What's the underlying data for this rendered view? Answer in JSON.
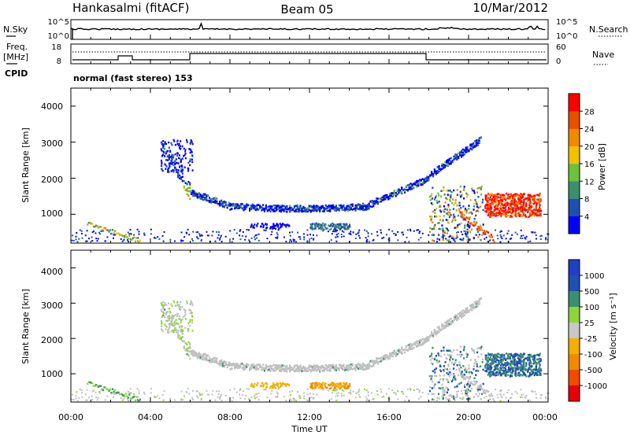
{
  "header": {
    "station": "Hankasalmi (fitACF)",
    "beam": "Beam 05",
    "date": "10/Mar/2012"
  },
  "strip_panels": {
    "nsky_label": "N.Sky",
    "nsky_ticks": [
      "10^5",
      "10^0"
    ],
    "nsearch_label": "N.Search",
    "nsearch_ticks": [
      "10^5",
      "10^0"
    ],
    "freq_label_line1": "Freq.",
    "freq_label_line2": "[MHz]",
    "freq_ticks": [
      "18",
      "8"
    ],
    "nave_label": "Nave",
    "nave_ticks": [
      "60",
      "0"
    ],
    "cpid_label": "CPID",
    "cpid_text": "normal (fast stereo) 153"
  },
  "colors": {
    "power_scale": [
      "#0000ff",
      "#1f4faf",
      "#3c8f6e",
      "#6dc13d",
      "#f2c200",
      "#f08a00",
      "#e85000",
      "#ff0000"
    ],
    "velocity_scale": [
      "#e80000",
      "#f24a00",
      "#f08a00",
      "#f2b000",
      "#c8c8c8",
      "#8fd43a",
      "#3c8f6e",
      "#1f4faf",
      "#2040c0"
    ],
    "ground_scatter": "#c0c0c0"
  },
  "chart_data": [
    {
      "type": "heatmap",
      "name": "power",
      "ylabel": "Slant Range [km]",
      "yticks": [
        "1000",
        "2000",
        "3000",
        "4000"
      ],
      "ylim": [
        200,
        4500
      ],
      "xlim": [
        0,
        24
      ],
      "colorbar": {
        "label": "Power [dB]",
        "ticks": [
          "4",
          "8",
          "12",
          "16",
          "20",
          "24",
          "28"
        ]
      },
      "features": [
        {
          "desc_hours": [
            4.5,
            20.5
          ],
          "range_km": [
            1100,
            3100
          ],
          "level": "low"
        },
        {
          "desc_hours": [
            4.8,
            6.0
          ],
          "range_km": [
            1300,
            1700
          ],
          "level": "high"
        },
        {
          "desc_hours": [
            20.8,
            23.5
          ],
          "range_km": [
            1000,
            1600
          ],
          "level": "max"
        }
      ]
    },
    {
      "type": "heatmap",
      "name": "velocity",
      "ylabel": "Slant Range [km]",
      "yticks": [
        "1000",
        "2000",
        "3000",
        "4000"
      ],
      "ylim": [
        200,
        4500
      ],
      "xlim": [
        0,
        24
      ],
      "colorbar": {
        "label": "Velocity [m s⁻¹]",
        "ticks": [
          "1000",
          "500",
          "100",
          "25",
          "-25",
          "-100",
          "-500",
          "-1000"
        ]
      }
    }
  ],
  "x_axis": {
    "ticks": [
      "00:00",
      "04:00",
      "08:00",
      "12:00",
      "16:00",
      "20:00",
      "00:00"
    ],
    "label": "Time UT"
  }
}
